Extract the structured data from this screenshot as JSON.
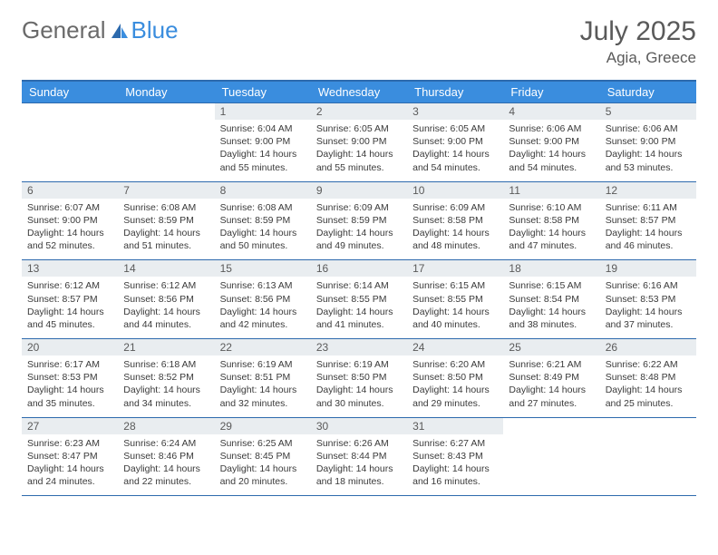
{
  "brand": {
    "part1": "General",
    "part2": "Blue"
  },
  "title": "July 2025",
  "location": "Agia, Greece",
  "colors": {
    "header_bg": "#3a8dde",
    "header_border": "#2d6aad",
    "daynum_bg": "#e9edf0",
    "text": "#3a3a3a",
    "muted": "#5a5a5a"
  },
  "weekdays": [
    "Sunday",
    "Monday",
    "Tuesday",
    "Wednesday",
    "Thursday",
    "Friday",
    "Saturday"
  ],
  "weeks": [
    [
      {
        "n": "",
        "sr": "",
        "ss": "",
        "dl": ""
      },
      {
        "n": "",
        "sr": "",
        "ss": "",
        "dl": ""
      },
      {
        "n": "1",
        "sr": "Sunrise: 6:04 AM",
        "ss": "Sunset: 9:00 PM",
        "dl": "Daylight: 14 hours and 55 minutes."
      },
      {
        "n": "2",
        "sr": "Sunrise: 6:05 AM",
        "ss": "Sunset: 9:00 PM",
        "dl": "Daylight: 14 hours and 55 minutes."
      },
      {
        "n": "3",
        "sr": "Sunrise: 6:05 AM",
        "ss": "Sunset: 9:00 PM",
        "dl": "Daylight: 14 hours and 54 minutes."
      },
      {
        "n": "4",
        "sr": "Sunrise: 6:06 AM",
        "ss": "Sunset: 9:00 PM",
        "dl": "Daylight: 14 hours and 54 minutes."
      },
      {
        "n": "5",
        "sr": "Sunrise: 6:06 AM",
        "ss": "Sunset: 9:00 PM",
        "dl": "Daylight: 14 hours and 53 minutes."
      }
    ],
    [
      {
        "n": "6",
        "sr": "Sunrise: 6:07 AM",
        "ss": "Sunset: 9:00 PM",
        "dl": "Daylight: 14 hours and 52 minutes."
      },
      {
        "n": "7",
        "sr": "Sunrise: 6:08 AM",
        "ss": "Sunset: 8:59 PM",
        "dl": "Daylight: 14 hours and 51 minutes."
      },
      {
        "n": "8",
        "sr": "Sunrise: 6:08 AM",
        "ss": "Sunset: 8:59 PM",
        "dl": "Daylight: 14 hours and 50 minutes."
      },
      {
        "n": "9",
        "sr": "Sunrise: 6:09 AM",
        "ss": "Sunset: 8:59 PM",
        "dl": "Daylight: 14 hours and 49 minutes."
      },
      {
        "n": "10",
        "sr": "Sunrise: 6:09 AM",
        "ss": "Sunset: 8:58 PM",
        "dl": "Daylight: 14 hours and 48 minutes."
      },
      {
        "n": "11",
        "sr": "Sunrise: 6:10 AM",
        "ss": "Sunset: 8:58 PM",
        "dl": "Daylight: 14 hours and 47 minutes."
      },
      {
        "n": "12",
        "sr": "Sunrise: 6:11 AM",
        "ss": "Sunset: 8:57 PM",
        "dl": "Daylight: 14 hours and 46 minutes."
      }
    ],
    [
      {
        "n": "13",
        "sr": "Sunrise: 6:12 AM",
        "ss": "Sunset: 8:57 PM",
        "dl": "Daylight: 14 hours and 45 minutes."
      },
      {
        "n": "14",
        "sr": "Sunrise: 6:12 AM",
        "ss": "Sunset: 8:56 PM",
        "dl": "Daylight: 14 hours and 44 minutes."
      },
      {
        "n": "15",
        "sr": "Sunrise: 6:13 AM",
        "ss": "Sunset: 8:56 PM",
        "dl": "Daylight: 14 hours and 42 minutes."
      },
      {
        "n": "16",
        "sr": "Sunrise: 6:14 AM",
        "ss": "Sunset: 8:55 PM",
        "dl": "Daylight: 14 hours and 41 minutes."
      },
      {
        "n": "17",
        "sr": "Sunrise: 6:15 AM",
        "ss": "Sunset: 8:55 PM",
        "dl": "Daylight: 14 hours and 40 minutes."
      },
      {
        "n": "18",
        "sr": "Sunrise: 6:15 AM",
        "ss": "Sunset: 8:54 PM",
        "dl": "Daylight: 14 hours and 38 minutes."
      },
      {
        "n": "19",
        "sr": "Sunrise: 6:16 AM",
        "ss": "Sunset: 8:53 PM",
        "dl": "Daylight: 14 hours and 37 minutes."
      }
    ],
    [
      {
        "n": "20",
        "sr": "Sunrise: 6:17 AM",
        "ss": "Sunset: 8:53 PM",
        "dl": "Daylight: 14 hours and 35 minutes."
      },
      {
        "n": "21",
        "sr": "Sunrise: 6:18 AM",
        "ss": "Sunset: 8:52 PM",
        "dl": "Daylight: 14 hours and 34 minutes."
      },
      {
        "n": "22",
        "sr": "Sunrise: 6:19 AM",
        "ss": "Sunset: 8:51 PM",
        "dl": "Daylight: 14 hours and 32 minutes."
      },
      {
        "n": "23",
        "sr": "Sunrise: 6:19 AM",
        "ss": "Sunset: 8:50 PM",
        "dl": "Daylight: 14 hours and 30 minutes."
      },
      {
        "n": "24",
        "sr": "Sunrise: 6:20 AM",
        "ss": "Sunset: 8:50 PM",
        "dl": "Daylight: 14 hours and 29 minutes."
      },
      {
        "n": "25",
        "sr": "Sunrise: 6:21 AM",
        "ss": "Sunset: 8:49 PM",
        "dl": "Daylight: 14 hours and 27 minutes."
      },
      {
        "n": "26",
        "sr": "Sunrise: 6:22 AM",
        "ss": "Sunset: 8:48 PM",
        "dl": "Daylight: 14 hours and 25 minutes."
      }
    ],
    [
      {
        "n": "27",
        "sr": "Sunrise: 6:23 AM",
        "ss": "Sunset: 8:47 PM",
        "dl": "Daylight: 14 hours and 24 minutes."
      },
      {
        "n": "28",
        "sr": "Sunrise: 6:24 AM",
        "ss": "Sunset: 8:46 PM",
        "dl": "Daylight: 14 hours and 22 minutes."
      },
      {
        "n": "29",
        "sr": "Sunrise: 6:25 AM",
        "ss": "Sunset: 8:45 PM",
        "dl": "Daylight: 14 hours and 20 minutes."
      },
      {
        "n": "30",
        "sr": "Sunrise: 6:26 AM",
        "ss": "Sunset: 8:44 PM",
        "dl": "Daylight: 14 hours and 18 minutes."
      },
      {
        "n": "31",
        "sr": "Sunrise: 6:27 AM",
        "ss": "Sunset: 8:43 PM",
        "dl": "Daylight: 14 hours and 16 minutes."
      },
      {
        "n": "",
        "sr": "",
        "ss": "",
        "dl": ""
      },
      {
        "n": "",
        "sr": "",
        "ss": "",
        "dl": ""
      }
    ]
  ]
}
